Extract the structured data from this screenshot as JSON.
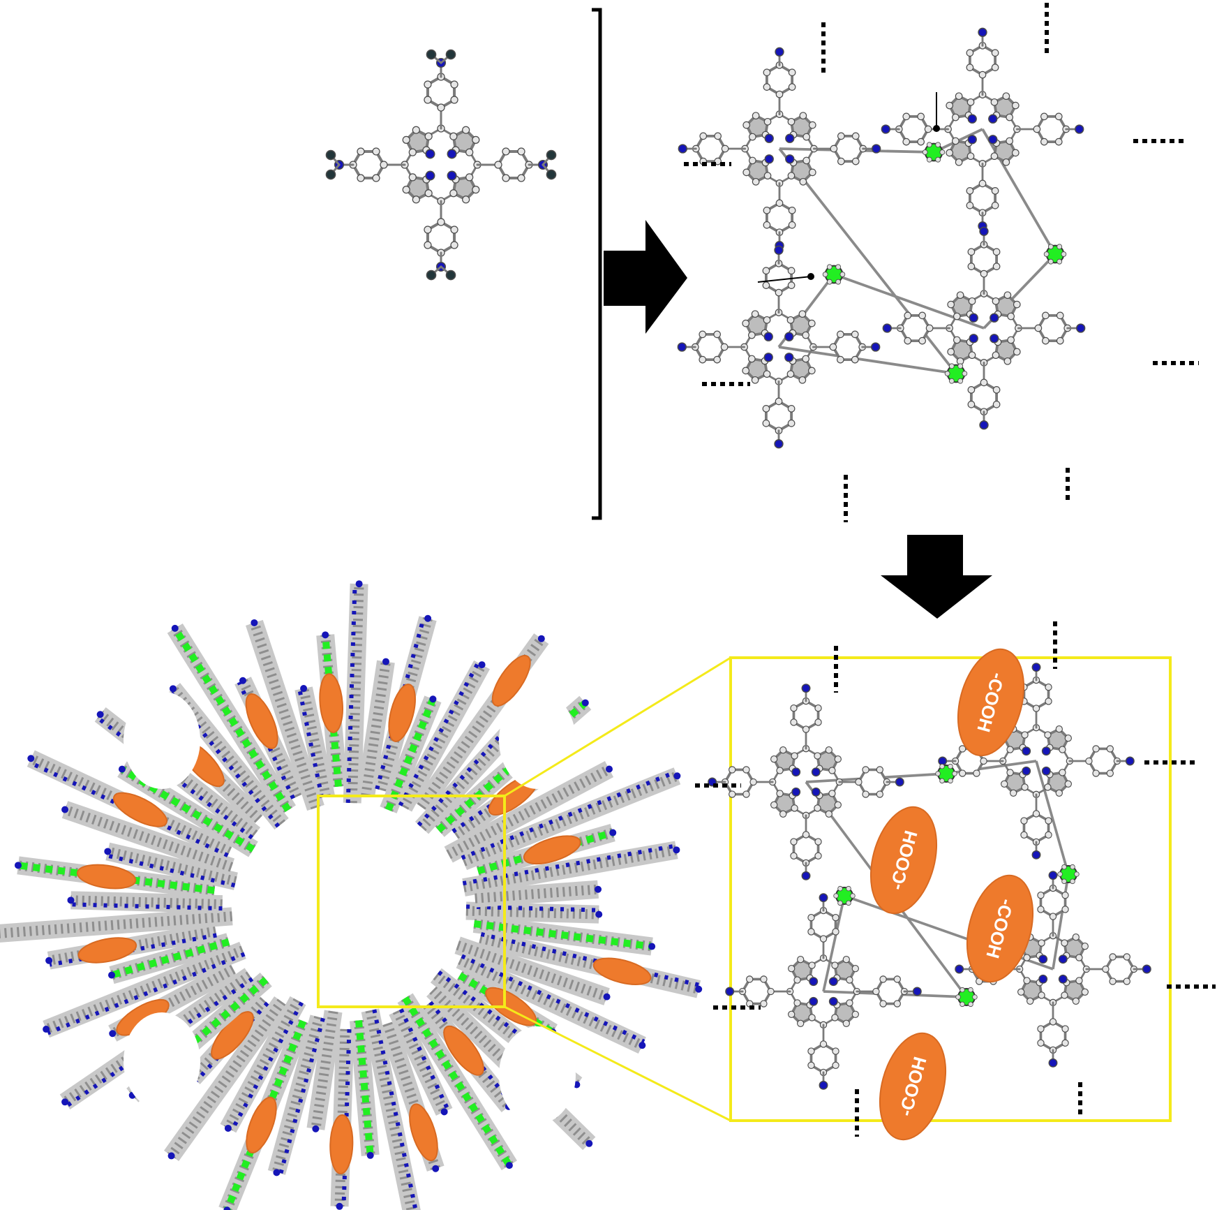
{
  "figure": {
    "description_visible": false
  },
  "colors": {
    "carbon": "#e6e6e6",
    "carbon_edge": "#4a4a4a",
    "pyrrole_fill": "#bdbdbd",
    "nitrogen": "#1515b8",
    "hydrogen_dark": "#22363a",
    "linker": "#22ee22",
    "cooh": "#ee7a2c",
    "cooh_edge": "#d86a22",
    "zoom_frame": "#f4ea1a",
    "arrow": "#000000",
    "bond_dash": "#000000"
  },
  "monomer": {
    "name": "tetra-aminophenyl porphyrin",
    "end_groups": [
      "NH2-top",
      "NH2-right",
      "NH2-bottom",
      "NH2-left"
    ]
  },
  "arrows": [
    {
      "id": "synthesis-arrow",
      "direction": "right"
    },
    {
      "id": "functionalization-arrow",
      "direction": "down"
    }
  ],
  "cooh_groups": [
    {
      "label": "-COOH",
      "rotation_deg": 105
    },
    {
      "label": "-COOH",
      "rotation_deg": -75
    },
    {
      "label": "-COOH",
      "rotation_deg": 105
    },
    {
      "label": "-COOH",
      "rotation_deg": -75
    }
  ]
}
